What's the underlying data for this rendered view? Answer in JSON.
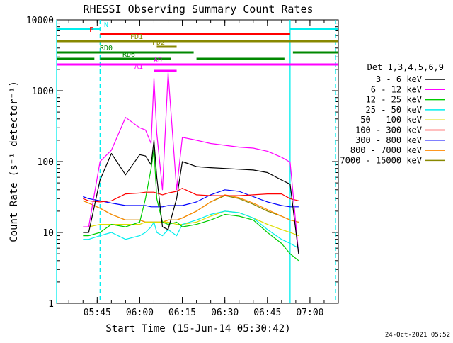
{
  "chart_data": {
    "type": "line",
    "title": "RHESSI Observing Summary Count Rates",
    "xlabel": "Start Time (15-Jun-14 05:30:42)",
    "ylabel": "Count Rate (s⁻¹ detector⁻¹)",
    "y_scale": "log",
    "ylim": [
      1,
      10000
    ],
    "xlim": [
      "05:30:42",
      "07:10:00"
    ],
    "x_ticks": [
      "05:45",
      "06:00",
      "06:15",
      "06:30",
      "06:45",
      "07:00"
    ],
    "y_ticks": [
      "1",
      "10",
      "100",
      "1000",
      "10000"
    ],
    "grid": false,
    "legend_title": "Det 1,3,4,5,6,9",
    "legend_position": "right",
    "timestamp": "24-Oct-2021 05:52",
    "x": [
      "05:40",
      "05:42",
      "05:46",
      "05:50",
      "05:55",
      "06:00",
      "06:02",
      "06:04",
      "06:05",
      "06:06",
      "06:08",
      "06:10",
      "06:13",
      "06:15",
      "06:20",
      "06:25",
      "06:30",
      "06:35",
      "06:40",
      "06:45",
      "06:50",
      "06:53",
      "06:56"
    ],
    "series": [
      {
        "name": "3 - 6 keV",
        "color": "#000000",
        "values": [
          10,
          10,
          55,
          130,
          65,
          125,
          120,
          90,
          200,
          60,
          12,
          11,
          30,
          100,
          85,
          82,
          80,
          78,
          76,
          70,
          55,
          48,
          5
        ]
      },
      {
        "name": "6 - 12 keV",
        "color": "#ff00ff",
        "values": [
          12,
          12,
          100,
          145,
          420,
          300,
          280,
          180,
          1500,
          250,
          40,
          1800,
          40,
          220,
          200,
          180,
          170,
          160,
          155,
          140,
          115,
          98,
          5
        ]
      },
      {
        "name": "12 - 25 keV",
        "color": "#00cc00",
        "values": [
          9,
          9,
          10,
          13,
          12,
          14,
          30,
          80,
          150,
          30,
          14,
          13,
          14,
          12,
          13,
          15,
          18,
          17,
          15,
          10,
          7,
          5,
          4
        ]
      },
      {
        "name": "25 - 50 keV",
        "color": "#00eeee",
        "values": [
          8,
          8,
          9,
          10,
          8,
          9,
          10,
          12,
          14,
          10,
          9,
          11,
          9,
          13,
          15,
          18,
          20,
          19,
          16,
          11,
          8,
          7,
          6
        ]
      },
      {
        "name": "50 - 100 keV",
        "color": "#dddd00",
        "values": [
          12,
          12,
          13,
          13,
          13,
          13,
          14,
          14,
          14,
          14,
          14,
          14,
          13,
          13,
          14,
          17,
          20,
          19,
          16,
          13,
          11,
          10,
          9
        ]
      },
      {
        "name": "100 - 300 keV",
        "color": "#ff0000",
        "values": [
          30,
          28,
          27,
          28,
          35,
          36,
          37,
          37,
          37,
          36,
          34,
          36,
          38,
          42,
          34,
          33,
          33,
          33,
          34,
          35,
          35,
          30,
          28
        ]
      },
      {
        "name": "300 - 800 keV",
        "color": "#0000ff",
        "values": [
          32,
          30,
          28,
          26,
          24,
          24,
          24,
          23,
          23,
          23,
          23,
          24,
          24,
          24,
          27,
          34,
          40,
          38,
          32,
          27,
          24,
          23,
          23
        ]
      },
      {
        "name": "800 - 7000 keV",
        "color": "#ff8800",
        "values": [
          28,
          26,
          22,
          18,
          15,
          15,
          14,
          14,
          14,
          14,
          14,
          15,
          15,
          16,
          20,
          27,
          34,
          31,
          26,
          21,
          17,
          15,
          14
        ]
      },
      {
        "name": "7000 - 15000 keV",
        "color": "#888800",
        "values": [
          28,
          26,
          22,
          18,
          15,
          15,
          14,
          14,
          14,
          14,
          14,
          15,
          15,
          16,
          20,
          27,
          33,
          30,
          25,
          20,
          17,
          15,
          14
        ]
      }
    ],
    "status_bars": [
      {
        "label": "N",
        "color": "#00eeee",
        "segments": [
          [
            "05:30:42",
            "05:46"
          ],
          [
            "06:53",
            "07:10"
          ]
        ]
      },
      {
        "label": "F",
        "color": "#ff0000",
        "segments": [
          [
            "05:46",
            "06:53"
          ]
        ]
      },
      {
        "label": "FD1",
        "color": "#888800",
        "segments": [
          [
            "05:30:42",
            "07:10"
          ]
        ]
      },
      {
        "label": "FD2",
        "color": "#888800",
        "segments": [
          [
            "06:06",
            "06:13"
          ]
        ]
      },
      {
        "label": "RD0",
        "color": "#008800",
        "segments": [
          [
            "05:30:42",
            "06:19"
          ],
          [
            "06:54",
            "07:10"
          ]
        ]
      },
      {
        "label": "RD6",
        "color": "#008800",
        "segments": [
          [
            "05:30:42",
            "05:44"
          ],
          [
            "05:46",
            "06:11"
          ],
          [
            "06:20",
            "06:51"
          ]
        ]
      },
      {
        "label": "AO",
        "color": "#ff00ff",
        "segments": [
          [
            "05:30:42",
            "07:10"
          ]
        ]
      },
      {
        "label": "A1",
        "color": "#ff00ff",
        "segments": [
          [
            "06:05",
            "06:13"
          ]
        ]
      }
    ],
    "vlines": [
      {
        "time": "05:30:42",
        "style": "solid",
        "color": "#00eeee"
      },
      {
        "time": "05:46",
        "style": "dashed",
        "color": "#00eeee"
      },
      {
        "time": "06:53",
        "style": "solid",
        "color": "#00eeee"
      },
      {
        "time": "07:09",
        "style": "dashed",
        "color": "#00eeee"
      }
    ]
  }
}
